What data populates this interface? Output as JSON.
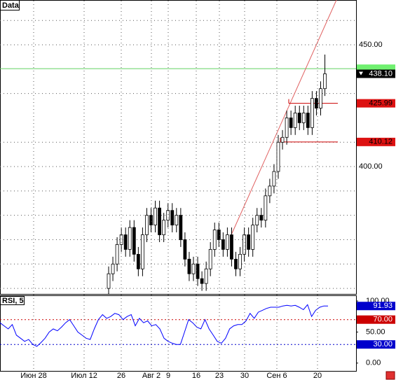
{
  "chart_data": [
    {
      "type": "candlestick",
      "title": "Data",
      "open": [
        350,
        356,
        360,
        368,
        372,
        366,
        375,
        364,
        358,
        372,
        380,
        376,
        383,
        372,
        378,
        382,
        376,
        380,
        370,
        362,
        356,
        360,
        354,
        352,
        358,
        366,
        374,
        370,
        366,
        372,
        362,
        358,
        364,
        372,
        366,
        376,
        380,
        378,
        388,
        392,
        398,
        410,
        412,
        420,
        416,
        422,
        418,
        422,
        416,
        428,
        424,
        432
      ],
      "high": [
        359,
        363,
        371,
        375,
        375,
        378,
        378,
        367,
        375,
        383,
        383,
        386,
        386,
        381,
        385,
        385,
        383,
        383,
        373,
        365,
        363,
        363,
        357,
        361,
        369,
        377,
        377,
        373,
        375,
        375,
        365,
        367,
        375,
        375,
        379,
        383,
        383,
        391,
        395,
        401,
        413,
        415,
        423,
        423,
        425,
        425,
        425,
        425,
        431,
        431,
        435,
        446
      ],
      "low": [
        347,
        353,
        357,
        365,
        363,
        363,
        361,
        355,
        355,
        369,
        373,
        373,
        369,
        369,
        375,
        373,
        373,
        367,
        359,
        353,
        353,
        351,
        349,
        349,
        355,
        363,
        367,
        363,
        363,
        359,
        355,
        355,
        361,
        363,
        363,
        373,
        375,
        375,
        385,
        389,
        395,
        407,
        409,
        413,
        413,
        415,
        415,
        413,
        413,
        421,
        421,
        429
      ],
      "close": [
        356,
        360,
        368,
        372,
        366,
        375,
        364,
        358,
        372,
        380,
        376,
        383,
        372,
        378,
        382,
        376,
        380,
        370,
        362,
        356,
        360,
        354,
        352,
        358,
        366,
        374,
        370,
        366,
        372,
        362,
        358,
        364,
        372,
        366,
        376,
        380,
        378,
        388,
        392,
        398,
        410,
        412,
        420,
        416,
        422,
        418,
        422,
        416,
        428,
        424,
        432,
        438.1
      ],
      "colors": {
        "up": "#ffffff",
        "down": "#000000"
      },
      "ylim": [
        348.3,
        468.4
      ],
      "yticks": [
        {
          "value": 450,
          "label": "450.00"
        },
        {
          "value": 400,
          "label": "400.00"
        }
      ],
      "grid_levels": [
        460,
        430,
        410,
        390,
        380,
        370,
        360,
        350
      ],
      "current_price": {
        "value": 438.1,
        "label": "438.10"
      },
      "bid_line": 440.2,
      "levels": [
        {
          "value": 425.99,
          "label": "425.99"
        },
        {
          "value": 410.12,
          "label": "410.12"
        }
      ],
      "trendline": [
        372,
        468.4
      ],
      "xticks": [
        "Июн 28",
        "Июл 12",
        "26",
        "Авг 2",
        "9",
        "16",
        "23",
        "30",
        "Сен 6",
        "20"
      ]
    },
    {
      "type": "line",
      "title": "RSI, 5",
      "color": "#0000ff",
      "values": [
        65,
        60,
        55,
        62,
        45,
        40,
        35,
        38,
        30,
        27,
        33,
        40,
        50,
        55,
        52,
        58,
        65,
        70,
        60,
        50,
        45,
        40,
        38,
        55,
        70,
        78,
        72,
        75,
        80,
        78,
        70,
        75,
        78,
        60,
        72,
        65,
        68,
        60,
        62,
        55,
        40,
        35,
        32,
        30,
        30,
        50,
        70,
        65,
        58,
        55,
        70,
        55,
        45,
        35,
        32,
        40,
        55,
        60,
        62,
        62,
        68,
        80,
        72,
        82,
        85,
        88,
        90,
        90,
        90,
        92,
        93,
        92,
        93,
        90,
        86,
        94,
        75,
        85,
        90,
        92,
        91.93
      ],
      "last_label": "91.93",
      "ylim": [
        -12.6,
        108
      ],
      "yticks": [
        {
          "value": 100,
          "label": "100.00"
        },
        {
          "value": 50,
          "label": "50.00"
        },
        {
          "value": 0,
          "label": "0.00"
        }
      ],
      "levels": [
        {
          "value": 70,
          "label": "70.00",
          "color": "#cc0000"
        },
        {
          "value": 30,
          "label": "30.00",
          "color": "#0000cc"
        }
      ]
    }
  ]
}
